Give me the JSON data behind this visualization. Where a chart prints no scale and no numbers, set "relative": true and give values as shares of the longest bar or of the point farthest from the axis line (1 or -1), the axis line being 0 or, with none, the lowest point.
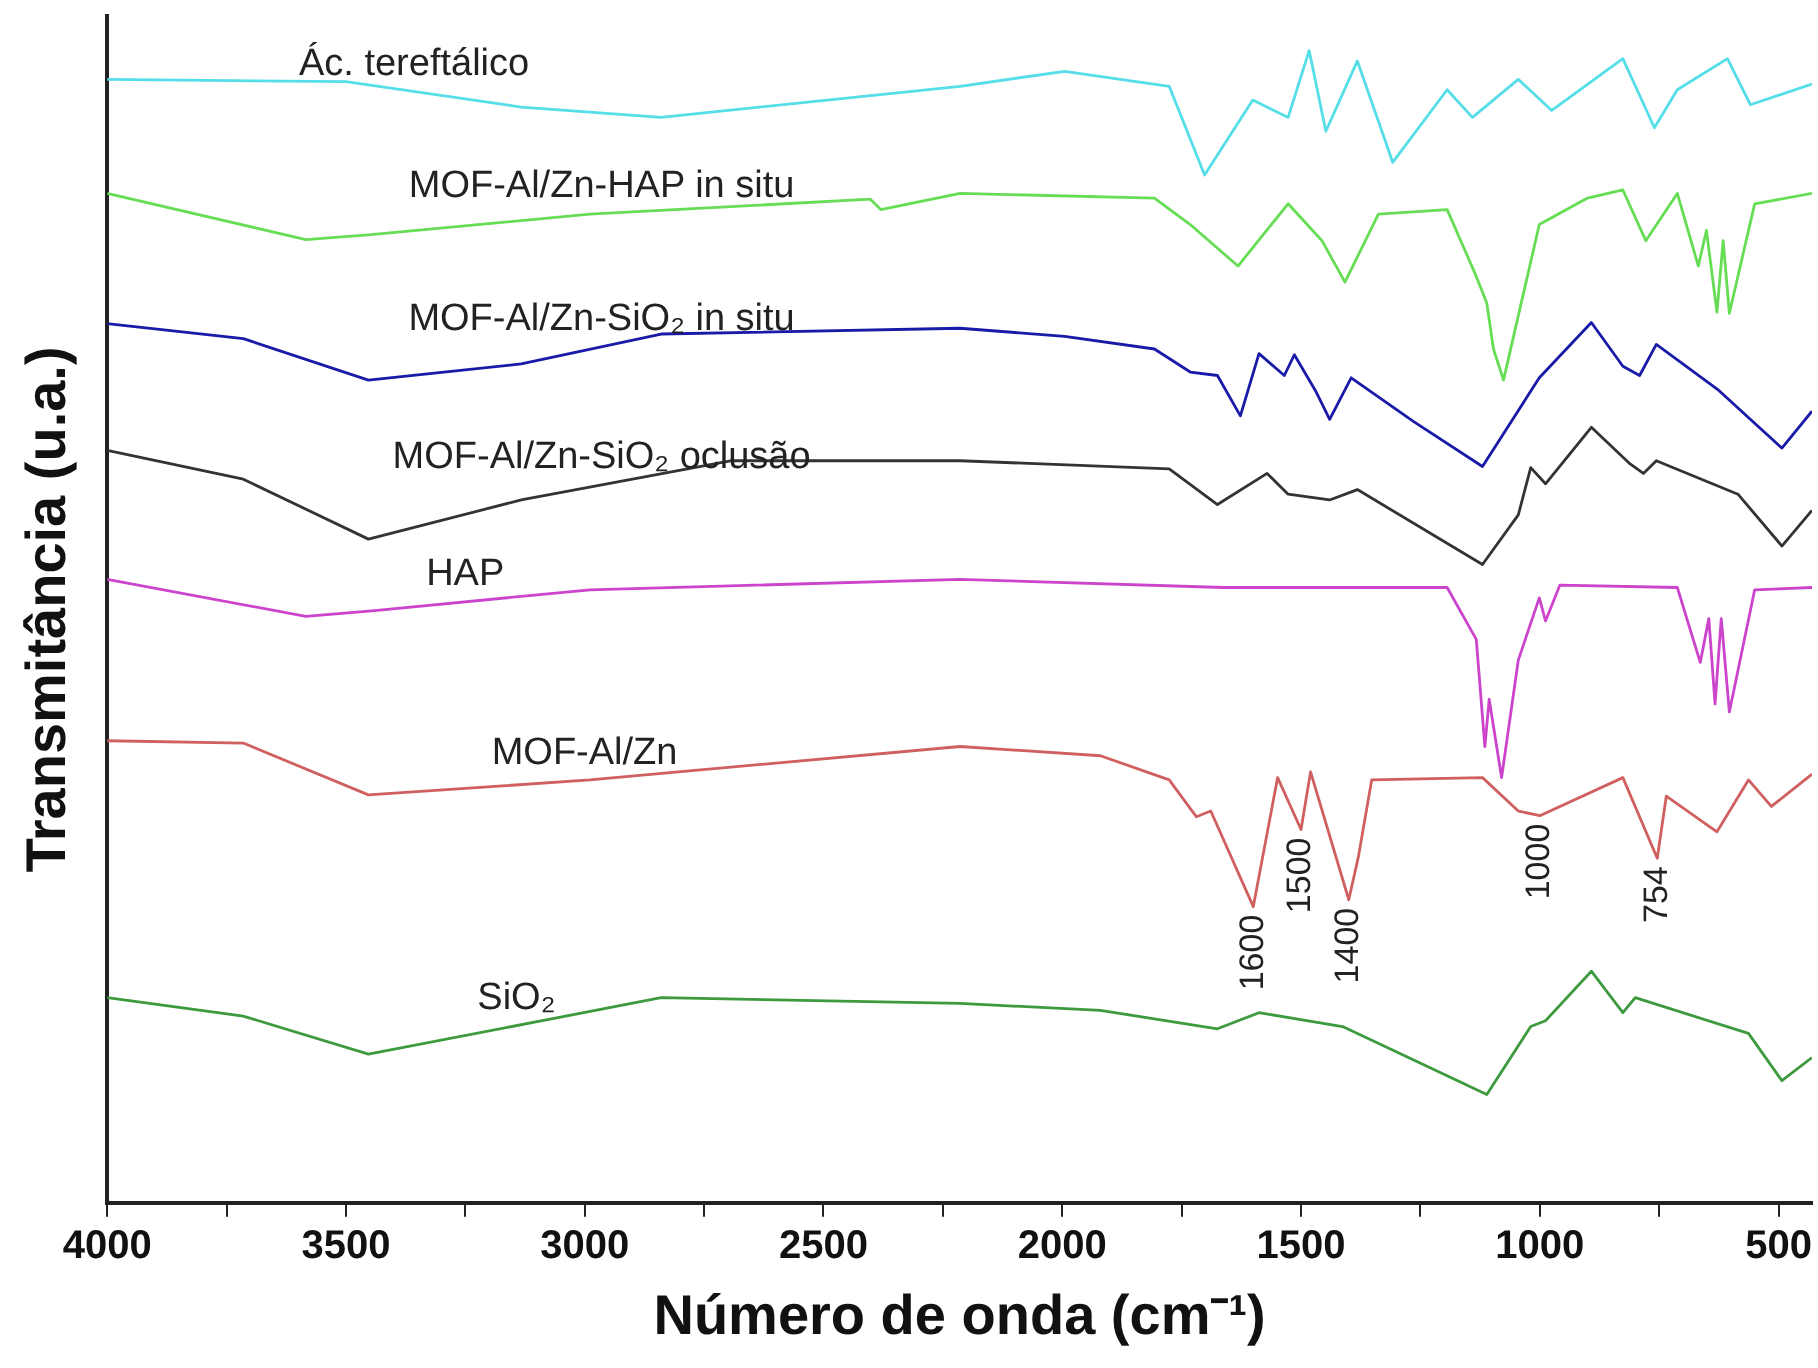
{
  "chart_data": {
    "type": "line",
    "relative": true,
    "xlabel": "Número de onda (cm⁻¹)",
    "ylabel": "Transmitância (u.a.)",
    "xlim": [
      4000,
      430
    ],
    "xticks": [
      4000,
      {
        "value": 3750,
        "label": null
      },
      3500,
      {
        "value": 3250,
        "label": null
      },
      3000,
      {
        "value": 2750,
        "label": null
      },
      2500,
      {
        "value": 2250,
        "label": null
      },
      2000,
      {
        "value": 1750,
        "label": null
      },
      1500,
      {
        "value": 1250,
        "label": null
      },
      1000,
      {
        "value": 750,
        "label": null
      },
      500
    ],
    "marker": "none",
    "legend": false,
    "series": [
      {
        "name": "Ác. tereftálico",
        "color": "#55dde8",
        "x": [
          4000,
          3500,
          3133,
          2840,
          2214,
          1995,
          1776,
          1702,
          1601,
          1527,
          1483,
          1448,
          1382,
          1308,
          1194,
          1141,
          1045,
          975,
          826,
          760,
          712,
          607,
          559,
          430
        ],
        "values": [
          0.975,
          0.973,
          0.951,
          0.942,
          0.969,
          0.982,
          0.969,
          0.892,
          0.957,
          0.942,
          1.0,
          0.93,
          0.991,
          0.903,
          0.966,
          0.942,
          0.975,
          0.948,
          0.993,
          0.933,
          0.966,
          0.993,
          0.953,
          0.971
        ]
      },
      {
        "name": "MOF-Al/Zn-HAP in situ",
        "color": "#66dd55",
        "x": [
          4000,
          3584,
          3453,
          2989,
          2402,
          2380,
          2214,
          1807,
          1732,
          1632,
          1527,
          1456,
          1408,
          1338,
          1194,
          1133,
          1111,
          1097,
          1076,
          1001,
          900,
          826,
          778,
          712,
          668,
          651,
          629,
          616,
          603,
          550,
          430
        ],
        "values": [
          0.876,
          0.836,
          0.84,
          0.858,
          0.871,
          0.862,
          0.876,
          0.872,
          0.849,
          0.813,
          0.867,
          0.835,
          0.799,
          0.858,
          0.862,
          0.804,
          0.781,
          0.741,
          0.714,
          0.849,
          0.872,
          0.879,
          0.835,
          0.876,
          0.813,
          0.844,
          0.773,
          0.835,
          0.772,
          0.867,
          0.876
        ]
      },
      {
        "name": "MOF-Al/Zn-SiO₂ in situ",
        "color": "#1a1aa8",
        "x": [
          4000,
          3715,
          3453,
          3133,
          2840,
          2214,
          1995,
          1807,
          1732,
          1675,
          1627,
          1588,
          1535,
          1514,
          1470,
          1440,
          1395,
          1264,
          1120,
          1001,
          892,
          826,
          791,
          756,
          625,
          493,
          430
        ],
        "values": [
          0.763,
          0.75,
          0.714,
          0.728,
          0.754,
          0.759,
          0.752,
          0.741,
          0.721,
          0.718,
          0.683,
          0.737,
          0.718,
          0.736,
          0.705,
          0.68,
          0.716,
          0.678,
          0.639,
          0.716,
          0.764,
          0.726,
          0.718,
          0.745,
          0.705,
          0.655,
          0.687
        ]
      },
      {
        "name": "MOF-Al/Zn-SiO₂ oclusão",
        "color": "#333333",
        "x": [
          4000,
          3715,
          3453,
          3133,
          2695,
          2214,
          1776,
          1675,
          1571,
          1527,
          1440,
          1382,
          1120,
          1045,
          1019,
          988,
          892,
          813,
          783,
          756,
          585,
          493,
          430
        ],
        "values": [
          0.653,
          0.628,
          0.576,
          0.61,
          0.644,
          0.644,
          0.637,
          0.606,
          0.633,
          0.615,
          0.61,
          0.619,
          0.554,
          0.597,
          0.638,
          0.624,
          0.673,
          0.642,
          0.633,
          0.644,
          0.615,
          0.57,
          0.601
        ]
      },
      {
        "name": "HAP",
        "color": "#cc44cc",
        "x": [
          4000,
          3584,
          3440,
          2989,
          2214,
          1662,
          1194,
          1133,
          1115,
          1106,
          1080,
          1045,
          1001,
          988,
          958,
          712,
          664,
          646,
          633,
          620,
          603,
          550,
          430
        ],
        "values": [
          0.541,
          0.509,
          0.514,
          0.532,
          0.541,
          0.534,
          0.534,
          0.489,
          0.396,
          0.437,
          0.369,
          0.471,
          0.525,
          0.505,
          0.536,
          0.534,
          0.469,
          0.507,
          0.433,
          0.507,
          0.426,
          0.532,
          0.534
        ]
      },
      {
        "name": "MOF-Al/Zn",
        "color": "#d06060",
        "x": [
          4000,
          3715,
          3453,
          2989,
          2214,
          1920,
          1776,
          1719,
          1689,
          1600,
          1549,
          1500,
          1480,
          1400,
          1380,
          1352,
          1120,
          1045,
          1000,
          826,
          754,
          735,
          629,
          563,
          515,
          430
        ],
        "values": [
          0.401,
          0.399,
          0.354,
          0.367,
          0.396,
          0.388,
          0.367,
          0.335,
          0.34,
          0.257,
          0.369,
          0.324,
          0.374,
          0.263,
          0.3,
          0.367,
          0.369,
          0.34,
          0.336,
          0.369,
          0.299,
          0.353,
          0.322,
          0.367,
          0.344,
          0.372
        ]
      },
      {
        "name": "SiO₂",
        "color": "#3e9a3e",
        "x": [
          4000,
          3715,
          3453,
          2840,
          2214,
          1920,
          1675,
          1588,
          1413,
          1264,
          1111,
          1019,
          988,
          892,
          826,
          800,
          563,
          493,
          430
        ],
        "values": [
          0.178,
          0.162,
          0.129,
          0.178,
          0.173,
          0.167,
          0.151,
          0.165,
          0.153,
          0.124,
          0.094,
          0.153,
          0.158,
          0.201,
          0.165,
          0.178,
          0.147,
          0.106,
          0.126
        ]
      }
    ],
    "annotations": [
      {
        "text": "1600",
        "x": 1600,
        "y": 0.257
      },
      {
        "text": "1500",
        "x": 1500,
        "y": 0.324
      },
      {
        "text": "1400",
        "x": 1400,
        "y": 0.263
      },
      {
        "text": "1000",
        "x": 1000,
        "y": 0.336
      },
      {
        "text": "754",
        "x": 754,
        "y": 0.299
      }
    ]
  }
}
